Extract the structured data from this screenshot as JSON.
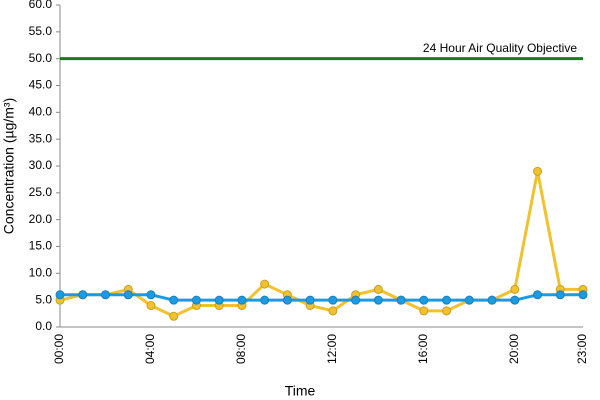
{
  "chart_data": {
    "type": "line",
    "x_label": "Time",
    "y_label": "Concentration (µg/m³)",
    "categories": [
      "00:00",
      null,
      null,
      null,
      "04:00",
      null,
      null,
      null,
      "08:00",
      null,
      null,
      null,
      "12:00",
      null,
      null,
      null,
      "16:00",
      null,
      null,
      null,
      "20:00",
      null,
      null,
      "23:00"
    ],
    "series": [
      {
        "color": "#f2c12e",
        "values": [
          5,
          6,
          6,
          7,
          4,
          2,
          4,
          4,
          4,
          8,
          6,
          4,
          3,
          6,
          7,
          5,
          3,
          3,
          5,
          5,
          7,
          29,
          7,
          7
        ]
      },
      {
        "color": "#1e9be0",
        "values": [
          6,
          6,
          6,
          6,
          6,
          5,
          5,
          5,
          5,
          5,
          5,
          5,
          5,
          5,
          5,
          5,
          5,
          5,
          5,
          5,
          5,
          6,
          6,
          6
        ]
      }
    ],
    "reference_line": {
      "value": 50,
      "label": "24 Hour Air Quality Objective",
      "color": "#1e7a1e"
    },
    "ylim": [
      0,
      60
    ],
    "yticks": [
      {
        "value": 0,
        "label": "0.0"
      },
      {
        "value": 5,
        "label": "5.0"
      },
      {
        "value": 10,
        "label": "10.0"
      },
      {
        "value": 15,
        "label": "15.0"
      },
      {
        "value": 20,
        "label": "20.0"
      },
      {
        "value": 25,
        "label": "25.0"
      },
      {
        "value": 30,
        "label": "30.0"
      },
      {
        "value": 35,
        "label": "35.0"
      },
      {
        "value": 40,
        "label": "40.0"
      },
      {
        "value": 45,
        "label": "45.0"
      },
      {
        "value": 50,
        "label": "50.0"
      },
      {
        "value": 55,
        "label": "55.0"
      },
      {
        "value": 60,
        "label": "60.0"
      }
    ],
    "grid": false
  }
}
